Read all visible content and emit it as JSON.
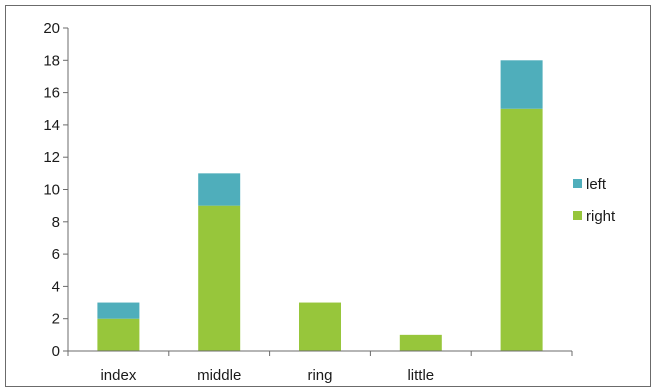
{
  "chart_data": {
    "type": "bar",
    "stacked": true,
    "categories": [
      "index",
      "middle",
      "ring",
      "little",
      ""
    ],
    "series": [
      {
        "name": "right",
        "values": [
          2,
          9,
          3,
          1,
          15
        ],
        "color": "#97c63b"
      },
      {
        "name": "left",
        "values": [
          1,
          2,
          0,
          0,
          3
        ],
        "color": "#4faebb"
      }
    ],
    "ylim": [
      0,
      20
    ],
    "yticks": [
      0,
      2,
      4,
      6,
      8,
      10,
      12,
      14,
      16,
      18,
      20
    ],
    "grid": false,
    "legend": {
      "position": "right",
      "entries": [
        "left",
        "right"
      ]
    }
  }
}
